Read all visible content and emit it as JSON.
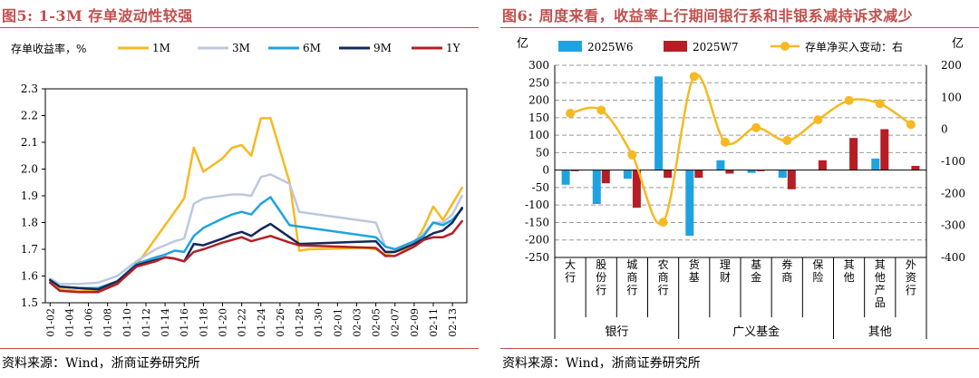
{
  "left": {
    "fig_title": "图5:   1-3M 存单波动性较强",
    "source": "资料来源：Wind，浙商证券研究所",
    "chart_data": {
      "type": "line",
      "title": "",
      "ylabel": "存单收益率，%",
      "ylim": [
        1.5,
        2.3
      ],
      "yticks": [
        "1.5",
        "1.6",
        "1.7",
        "1.8",
        "1.9",
        "2.0",
        "2.1",
        "2.2",
        "2.3"
      ],
      "xticks": [
        "01-02",
        "01-04",
        "01-06",
        "01-08",
        "01-10",
        "01-12",
        "01-14",
        "01-16",
        "01-18",
        "01-20",
        "01-22",
        "01-24",
        "01-26",
        "01-28",
        "01-30",
        "02-01",
        "02-03",
        "02-05",
        "02-07",
        "02-09",
        "02-11",
        "02-13"
      ],
      "series": [
        {
          "name": "1M",
          "color": "#f6b921",
          "points": [
            [
              0,
              1.58
            ],
            [
              1,
              1.55
            ],
            [
              3,
              1.545
            ],
            [
              5,
              1.545
            ],
            [
              7,
              1.57
            ],
            [
              9,
              1.64
            ],
            [
              11,
              1.74
            ],
            [
              13,
              1.84
            ],
            [
              14,
              1.89
            ],
            [
              15,
              2.08
            ],
            [
              16,
              1.99
            ],
            [
              18,
              2.04
            ],
            [
              19,
              2.08
            ],
            [
              20,
              2.09
            ],
            [
              21,
              2.05
            ],
            [
              22,
              2.19
            ],
            [
              23,
              2.19
            ],
            [
              25,
              1.95
            ],
            [
              26,
              1.695
            ],
            [
              27,
              1.7
            ],
            [
              33,
              1.705
            ],
            [
              34,
              1.7
            ],
            [
              35,
              1.68
            ],
            [
              36,
              1.69
            ],
            [
              37,
              1.7
            ],
            [
              38,
              1.72
            ],
            [
              39,
              1.78
            ],
            [
              40,
              1.86
            ],
            [
              41,
              1.81
            ],
            [
              42,
              1.87
            ],
            [
              43,
              1.93
            ]
          ]
        },
        {
          "name": "3M",
          "color": "#bcc8de",
          "points": [
            [
              0,
              1.59
            ],
            [
              1,
              1.57
            ],
            [
              3,
              1.57
            ],
            [
              5,
              1.575
            ],
            [
              7,
              1.6
            ],
            [
              9,
              1.655
            ],
            [
              11,
              1.7
            ],
            [
              13,
              1.73
            ],
            [
              14,
              1.74
            ],
            [
              15,
              1.87
            ],
            [
              16,
              1.89
            ],
            [
              18,
              1.9
            ],
            [
              19,
              1.905
            ],
            [
              20,
              1.905
            ],
            [
              21,
              1.9
            ],
            [
              22,
              1.97
            ],
            [
              23,
              1.98
            ],
            [
              25,
              1.945
            ],
            [
              26,
              1.84
            ],
            [
              34,
              1.8
            ],
            [
              35,
              1.71
            ],
            [
              36,
              1.7
            ],
            [
              38,
              1.73
            ],
            [
              39,
              1.76
            ],
            [
              40,
              1.8
            ],
            [
              41,
              1.8
            ],
            [
              42,
              1.83
            ],
            [
              43,
              1.9
            ]
          ]
        },
        {
          "name": "6M",
          "color": "#1fa3e0",
          "points": [
            [
              0,
              1.585
            ],
            [
              1,
              1.56
            ],
            [
              3,
              1.555
            ],
            [
              5,
              1.555
            ],
            [
              7,
              1.58
            ],
            [
              9,
              1.645
            ],
            [
              11,
              1.67
            ],
            [
              12,
              1.68
            ],
            [
              13,
              1.695
            ],
            [
              14,
              1.69
            ],
            [
              15,
              1.75
            ],
            [
              16,
              1.78
            ],
            [
              18,
              1.815
            ],
            [
              19,
              1.83
            ],
            [
              20,
              1.84
            ],
            [
              21,
              1.83
            ],
            [
              22,
              1.87
            ],
            [
              23,
              1.895
            ],
            [
              25,
              1.79
            ],
            [
              26,
              1.785
            ],
            [
              34,
              1.745
            ],
            [
              35,
              1.71
            ],
            [
              36,
              1.7
            ],
            [
              38,
              1.73
            ],
            [
              39,
              1.75
            ],
            [
              40,
              1.8
            ],
            [
              41,
              1.79
            ],
            [
              42,
              1.81
            ],
            [
              43,
              1.85
            ]
          ]
        },
        {
          "name": "9M",
          "color": "#14285a",
          "points": [
            [
              0,
              1.585
            ],
            [
              1,
              1.56
            ],
            [
              3,
              1.555
            ],
            [
              5,
              1.55
            ],
            [
              7,
              1.58
            ],
            [
              9,
              1.64
            ],
            [
              11,
              1.66
            ],
            [
              12,
              1.67
            ],
            [
              13,
              1.665
            ],
            [
              14,
              1.655
            ],
            [
              15,
              1.72
            ],
            [
              16,
              1.715
            ],
            [
              18,
              1.74
            ],
            [
              19,
              1.755
            ],
            [
              20,
              1.765
            ],
            [
              21,
              1.75
            ],
            [
              22,
              1.775
            ],
            [
              23,
              1.795
            ],
            [
              25,
              1.745
            ],
            [
              26,
              1.72
            ],
            [
              34,
              1.73
            ],
            [
              35,
              1.69
            ],
            [
              36,
              1.69
            ],
            [
              38,
              1.72
            ],
            [
              39,
              1.74
            ],
            [
              40,
              1.76
            ],
            [
              41,
              1.77
            ],
            [
              42,
              1.8
            ],
            [
              43,
              1.855
            ]
          ]
        },
        {
          "name": "1Y",
          "color": "#b51e24",
          "points": [
            [
              0,
              1.575
            ],
            [
              1,
              1.545
            ],
            [
              3,
              1.54
            ],
            [
              5,
              1.54
            ],
            [
              7,
              1.57
            ],
            [
              9,
              1.635
            ],
            [
              11,
              1.655
            ],
            [
              12,
              1.67
            ],
            [
              13,
              1.665
            ],
            [
              14,
              1.655
            ],
            [
              15,
              1.69
            ],
            [
              16,
              1.7
            ],
            [
              18,
              1.725
            ],
            [
              19,
              1.735
            ],
            [
              20,
              1.745
            ],
            [
              21,
              1.73
            ],
            [
              22,
              1.74
            ],
            [
              23,
              1.75
            ],
            [
              25,
              1.725
            ],
            [
              26,
              1.715
            ],
            [
              34,
              1.705
            ],
            [
              35,
              1.675
            ],
            [
              36,
              1.675
            ],
            [
              38,
              1.71
            ],
            [
              39,
              1.735
            ],
            [
              40,
              1.745
            ],
            [
              41,
              1.745
            ],
            [
              42,
              1.76
            ],
            [
              43,
              1.805
            ]
          ]
        }
      ]
    }
  },
  "right": {
    "fig_title": "图6:   周度来看，收益率上行期间银行系和非银系减持诉求减少",
    "source": "资料来源：Wind，浙商证券研究所",
    "chart_data": {
      "type": "bar",
      "title": "",
      "ylabel_left": "亿",
      "ylabel_right": "亿",
      "ylim_left": [
        -250,
        300
      ],
      "ylim_right": [
        -400,
        200
      ],
      "yticks_left": [
        "300",
        "250",
        "200",
        "150",
        "100",
        "50",
        "0",
        "-50",
        "-100",
        "-150",
        "-200",
        "-250"
      ],
      "yticks_right": [
        "200",
        "100",
        "0",
        "-100",
        "-200",
        "-300",
        "-400"
      ],
      "categories": [
        "大行",
        "股份行",
        "城商行",
        "农商行",
        "货基",
        "理财",
        "基金",
        "券商",
        "保险",
        "其他",
        "其他产品",
        "外资行"
      ],
      "groups": [
        {
          "label": "银行",
          "from": 0,
          "to": 3
        },
        {
          "label": "广义基金",
          "from": 4,
          "to": 8
        },
        {
          "label": "其他",
          "from": 9,
          "to": 11
        }
      ],
      "series": [
        {
          "name": "2025W6",
          "color": "#1fa3e0",
          "axis": "left",
          "values": [
            -42,
            -97,
            -25,
            268,
            -188,
            28,
            -8,
            -22,
            0,
            0,
            33,
            0
          ]
        },
        {
          "name": "2025W7",
          "color": "#b51e24",
          "axis": "left",
          "values": [
            -3,
            -38,
            -108,
            -22,
            -22,
            -10,
            -3,
            -55,
            28,
            92,
            117,
            12
          ]
        },
        {
          "name": "存单净买入变动：右",
          "color": "#f6b921",
          "axis": "right",
          "type": "line",
          "values": [
            50,
            60,
            -80,
            -290,
            165,
            -40,
            5,
            -35,
            30,
            90,
            80,
            15
          ]
        }
      ]
    }
  }
}
